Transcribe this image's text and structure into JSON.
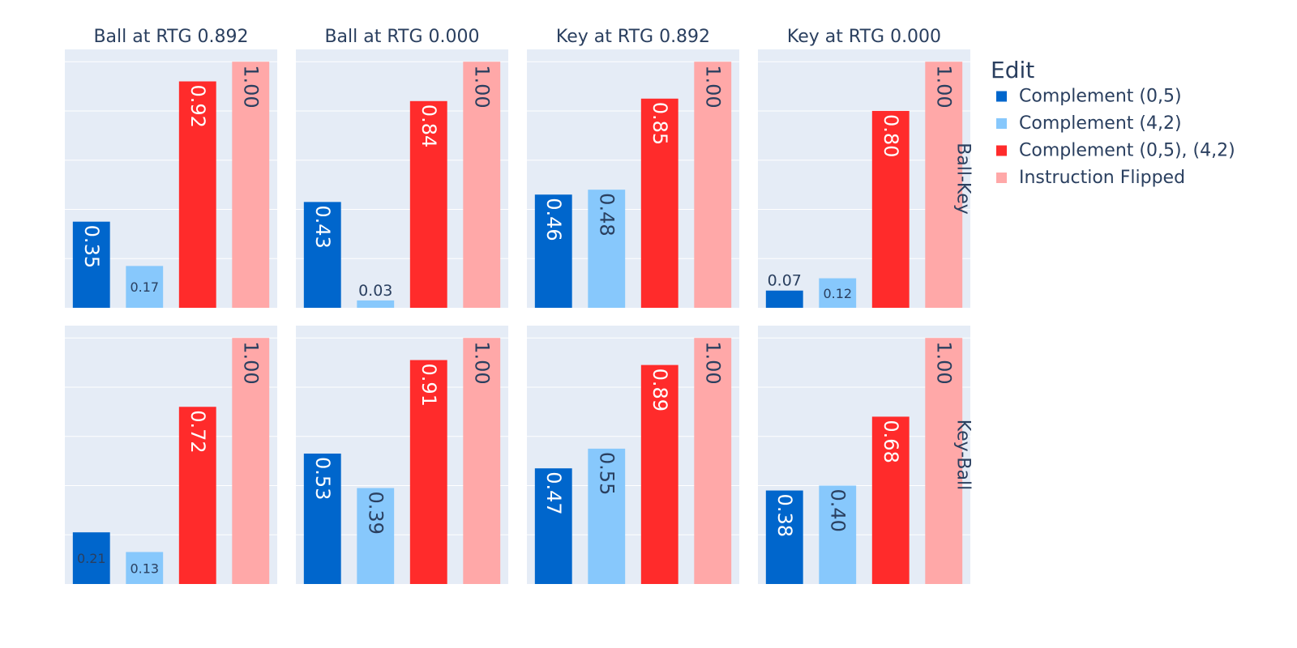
{
  "chart_data": {
    "type": "bar",
    "legend_title": "Edit",
    "legend_position": "right",
    "columns": [
      "Ball at RTG 0.892",
      "Ball at RTG 0.000",
      "Key at RTG 0.892",
      "Key at RTG 0.000"
    ],
    "rows": [
      "Ball-Key",
      "Key-Ball"
    ],
    "series": [
      {
        "name": "Complement (0,5)",
        "color": "#0066cc"
      },
      {
        "name": "Complement (4,2)",
        "color": "#87c8fc"
      },
      {
        "name": "Complement (0,5), (4,2)",
        "color": "#ff2b2b"
      },
      {
        "name": "Instruction Flipped",
        "color": "#ffa8a8"
      }
    ],
    "values": [
      [
        [
          0.35,
          0.17,
          0.92,
          1.0
        ],
        [
          0.43,
          0.03,
          0.84,
          1.0
        ],
        [
          0.46,
          0.48,
          0.85,
          1.0
        ],
        [
          0.07,
          0.12,
          0.8,
          1.0
        ]
      ],
      [
        [
          0.21,
          0.13,
          0.72,
          1.0
        ],
        [
          0.53,
          0.39,
          0.91,
          1.0
        ],
        [
          0.47,
          0.55,
          0.89,
          1.0
        ],
        [
          0.38,
          0.4,
          0.68,
          1.0
        ]
      ]
    ],
    "labels": [
      [
        [
          "0.35",
          "0.17",
          "0.92",
          "1.00"
        ],
        [
          "0.43",
          "0.03",
          "0.84",
          "1.00"
        ],
        [
          "0.46",
          "0.48",
          "0.85",
          "1.00"
        ],
        [
          "0.07",
          "0.12",
          "0.80",
          "1.00"
        ]
      ],
      [
        [
          "0.21",
          "0.13",
          "0.72",
          "1.00"
        ],
        [
          "0.53",
          "0.39",
          "0.91",
          "1.00"
        ],
        [
          "0.47",
          "0.55",
          "0.89",
          "1.00"
        ],
        [
          "0.38",
          "0.40",
          "0.68",
          "1.00"
        ]
      ]
    ],
    "ylim": [
      0,
      1.05
    ],
    "gridlines": [
      0.2,
      0.4,
      0.6,
      0.8,
      1.0
    ],
    "grid": true,
    "colors": {
      "plot_bg": "#e5ecf6",
      "grid": "#ffffff",
      "text": "#2a3f5f"
    }
  }
}
